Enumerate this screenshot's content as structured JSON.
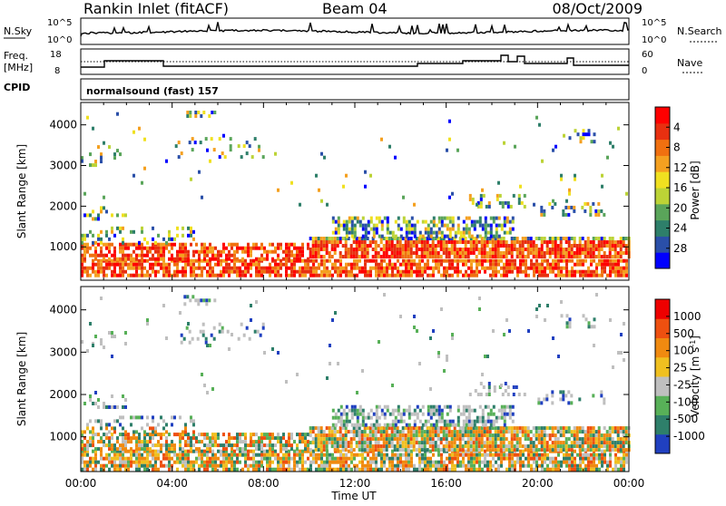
{
  "header": {
    "station": "Rankin Inlet (fitACF)",
    "beam": "Beam 04",
    "date": "08/Oct/2009"
  },
  "top_panels": {
    "nsky_label": "N.Sky",
    "nsky_ticks": [
      "10^5",
      "10^0"
    ],
    "nsearch_ticks": [
      "10^5",
      "10^0"
    ],
    "nsearch_label": "N.Search",
    "freq_label": "Freq.",
    "freq_unit": "[MHz]",
    "freq_ticks": [
      "18",
      "8"
    ],
    "nave_ticks": [
      "60",
      "0"
    ],
    "nave_label": "Nave",
    "cpid_label": "CPID",
    "cpid_text": "normalsound (fast) 157"
  },
  "chart_data": [
    {
      "type": "heatmap",
      "title": "",
      "xlabel": "Time UT",
      "ylabel": "Slant Range [km]",
      "x_ticks": [
        "00:00",
        "04:00",
        "08:00",
        "12:00",
        "16:00",
        "20:00",
        "00:00"
      ],
      "y_ticks": [
        "1000",
        "2000",
        "3000",
        "4000"
      ],
      "ylim": [
        180,
        4550
      ],
      "colorbar": {
        "label": "Power [dB]",
        "ticks": [
          "4",
          "8",
          "12",
          "16",
          "20",
          "24",
          "28"
        ],
        "colors": [
          "#0000ff",
          "#2a4fa8",
          "#2e7f6a",
          "#5aa55a",
          "#bcd336",
          "#f0e020",
          "#f4a020",
          "#f07010",
          "#e83010",
          "#ff0000"
        ]
      }
    },
    {
      "type": "heatmap",
      "title": "",
      "xlabel": "Time UT",
      "ylabel": "Slant Range [km]",
      "x_ticks": [
        "00:00",
        "04:00",
        "08:00",
        "12:00",
        "16:00",
        "20:00",
        "00:00"
      ],
      "y_ticks": [
        "1000",
        "2000",
        "3000",
        "4000"
      ],
      "ylim": [
        180,
        4550
      ],
      "colorbar": {
        "label": "Velocity [m s",
        "label_sup": "-1",
        "label_end": "]",
        "ticks": [
          "1000",
          "500",
          "100",
          "25",
          "-25",
          "-100",
          "-500",
          "-1000"
        ],
        "colors": [
          "#2040c0",
          "#2e7f6a",
          "#58b058",
          "#bfbfbf",
          "#f0c020",
          "#f08a10",
          "#ee5010",
          "#ee0000"
        ]
      }
    }
  ]
}
